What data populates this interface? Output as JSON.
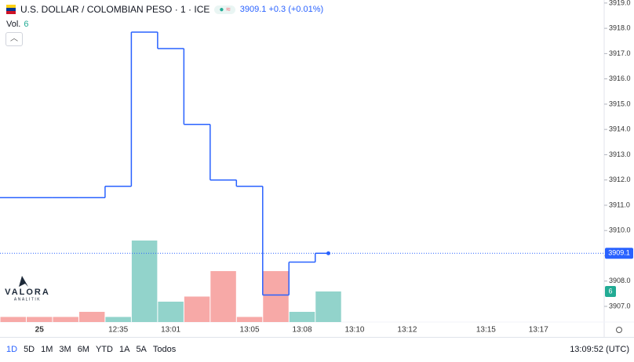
{
  "header": {
    "title": "U.S. DOLLAR / COLOMBIAN PESO · 1 · ICE",
    "change": "+0.3",
    "change_pct": "(+0.01%)",
    "volume_label": "Vol."
  },
  "chart_data": {
    "type": "step-line",
    "categories": [
      null,
      "25",
      null,
      null,
      "12:35",
      null,
      "13:01",
      null,
      null,
      "13:05",
      null,
      "13:08",
      null,
      "13:10",
      null,
      "13:12",
      null,
      null,
      "13:15",
      null,
      "13:17",
      null,
      null
    ],
    "series": [
      {
        "name": "USD/COP",
        "color": "#2962ff",
        "values": [
          3911.3,
          3911.3,
          3911.3,
          3911.3,
          3911.75,
          3917.85,
          3917.2,
          3914.2,
          3912,
          3911.75,
          3907.45,
          3908.75,
          3909.1,
          null,
          null,
          null,
          null,
          null,
          null,
          null,
          null,
          null,
          null
        ]
      }
    ],
    "volume": {
      "values": [
        1,
        1,
        1,
        2,
        1,
        16,
        4,
        5,
        10,
        1,
        10,
        2,
        6,
        null,
        null,
        null,
        null,
        null,
        null,
        null,
        null,
        null,
        null
      ],
      "colors": [
        "#f7a9a7",
        "#f7a9a7",
        "#f7a9a7",
        "#f7a9a7",
        "#92d3cb",
        "#92d3cb",
        "#92d3cb",
        "#f7a9a7",
        "#f7a9a7",
        "#f7a9a7",
        "#f7a9a7",
        "#92d3cb",
        "#92d3cb",
        null,
        null,
        null,
        null,
        null,
        null,
        null,
        null,
        null,
        null
      ],
      "ylim": [
        0,
        63.2
      ]
    },
    "ylim": [
      3906.38,
      3919.12
    ],
    "yticks": [
      {
        "value": 3907,
        "label": "3907.0"
      },
      {
        "value": 3908,
        "label": "3908.0"
      },
      {
        "value": 3909,
        "label": "3909.0"
      },
      {
        "value": 3910,
        "label": "3910.0"
      },
      {
        "value": 3911,
        "label": "3911.0"
      },
      {
        "value": 3912,
        "label": "3912.0"
      },
      {
        "value": 3913,
        "label": "3913.0"
      },
      {
        "value": 3914,
        "label": "3914.0"
      },
      {
        "value": 3915,
        "label": "3915.0"
      },
      {
        "value": 3916,
        "label": "3916.0"
      },
      {
        "value": 3917,
        "label": "3917.0"
      },
      {
        "value": 3918,
        "label": "3918.0"
      },
      {
        "value": 3919,
        "label": "3919.0"
      }
    ],
    "grid": false
  },
  "logo": {
    "name": "VALORA",
    "sub": "ANALITIK"
  },
  "ranges": [
    "1D",
    "5D",
    "1M",
    "3M",
    "6M",
    "YTD",
    "1A",
    "5A",
    "Todos"
  ],
  "clock": "13:09:52 (UTC)"
}
